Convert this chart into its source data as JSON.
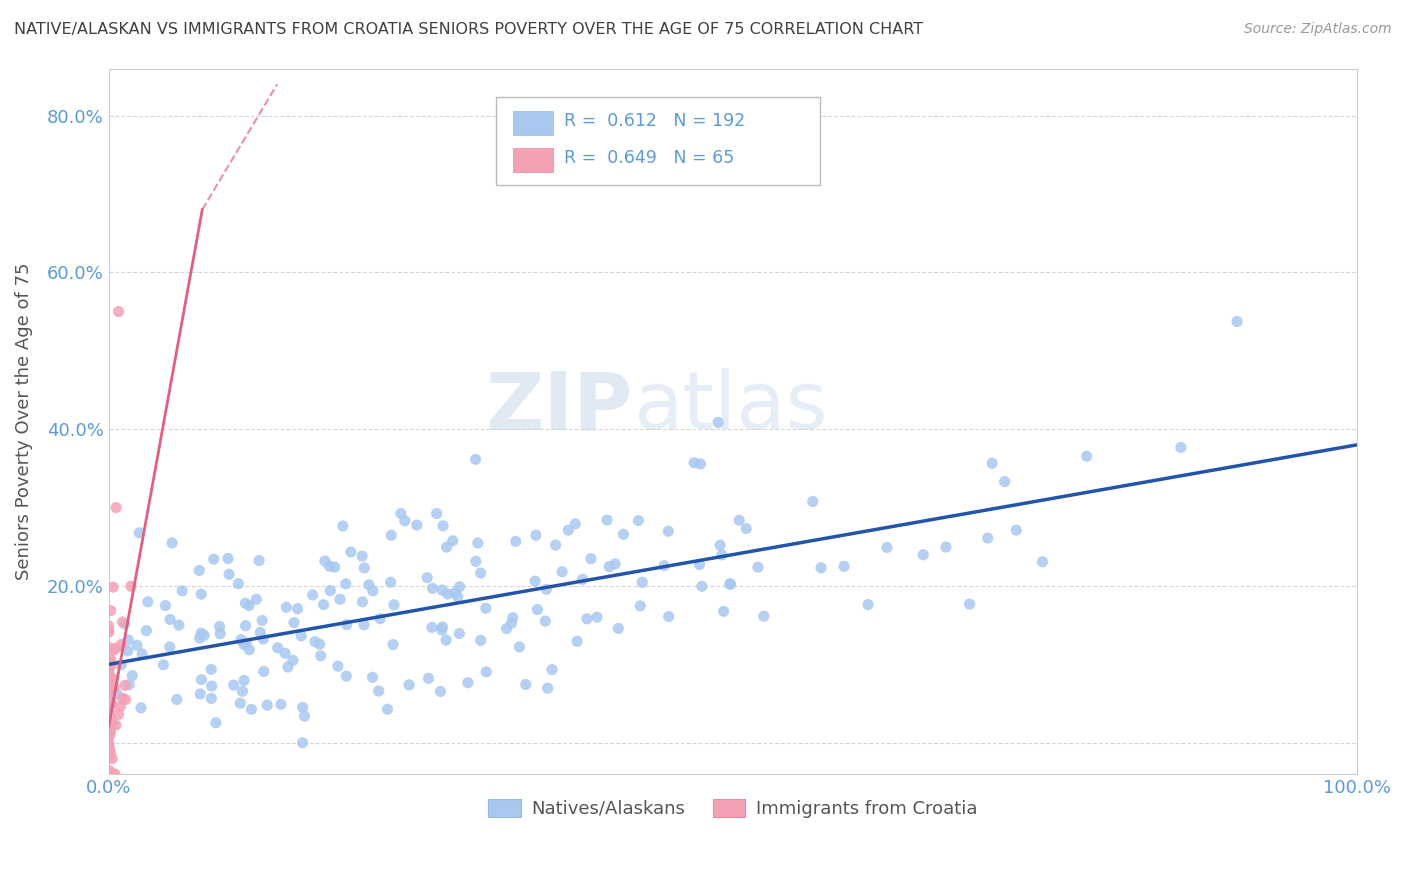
{
  "title": "NATIVE/ALASKAN VS IMMIGRANTS FROM CROATIA SENIORS POVERTY OVER THE AGE OF 75 CORRELATION CHART",
  "source": "Source: ZipAtlas.com",
  "ylabel": "Seniors Poverty Over the Age of 75",
  "xlim": [
    0,
    1.0
  ],
  "ylim": [
    -0.04,
    0.86
  ],
  "native_color": "#a8c8f0",
  "immigrant_color": "#f4a0b5",
  "native_line_color": "#2255aa",
  "immigrant_line_color": "#e06080",
  "native_R": 0.612,
  "native_N": 192,
  "immigrant_R": 0.649,
  "immigrant_N": 65,
  "watermark_zip": "ZIP",
  "watermark_atlas": "atlas",
  "legend_label_1": "Natives/Alaskans",
  "legend_label_2": "Immigrants from Croatia",
  "background_color": "#ffffff",
  "grid_color": "#d8d8d8",
  "title_color": "#404040",
  "axis_color": "#5b9bd5",
  "ytick_labels": [
    "",
    "20.0%",
    "40.0%",
    "60.0%",
    "80.0%"
  ],
  "xtick_labels_left": "0.0%",
  "xtick_labels_right": "100.0%"
}
